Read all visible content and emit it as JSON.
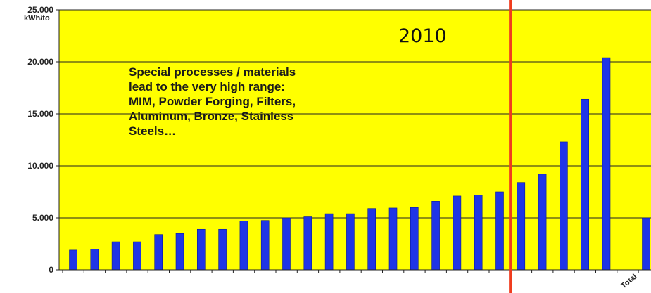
{
  "colors": {
    "plot_background": "#ffff00",
    "bars": "#1f35e6",
    "marker_line": "#f03c1e",
    "gridline": "#222222"
  },
  "annotations": {
    "unit": "kWh/to",
    "note": "Special processes / materials\nlead to the very high range:\nMIM, Powder Forging, Filters,\nAluminum, Bronze, Stainless\nSteels…",
    "year": "2010",
    "total_label": "Total"
  },
  "chart_data": {
    "type": "bar",
    "ylim": [
      0,
      25000
    ],
    "y_ticks": [
      {
        "value": 0,
        "label": "0"
      },
      {
        "value": 5000,
        "label": "5.000"
      },
      {
        "value": 10000,
        "label": "10.000"
      },
      {
        "value": 15000,
        "label": "15.000"
      },
      {
        "value": 20000,
        "label": "20.000"
      },
      {
        "value": 25000,
        "label": "25.000"
      }
    ],
    "grid": true,
    "values": [
      1900,
      2000,
      2700,
      2700,
      3400,
      3500,
      3900,
      3900,
      4700,
      4750,
      5000,
      5100,
      5400,
      5400,
      5900,
      5950,
      6000,
      6600,
      7100,
      7200,
      7500,
      8400,
      9200,
      12300,
      16400,
      20400
    ],
    "total_value": 5000,
    "marker_after_index": 20
  }
}
